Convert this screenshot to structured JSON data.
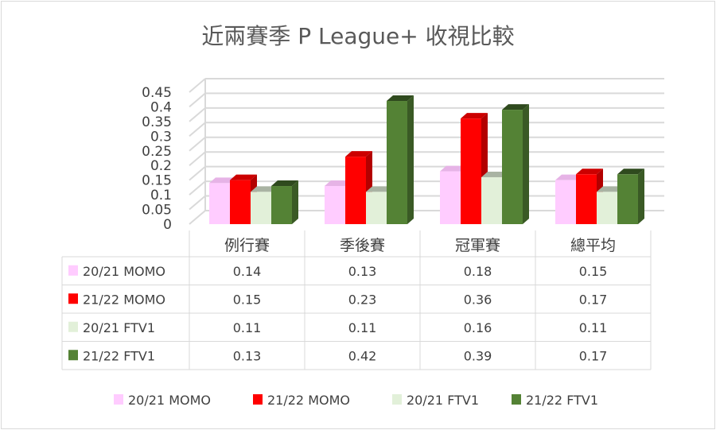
{
  "chart_data": {
    "type": "bar",
    "title": "近兩賽季 P League+ 收視比較",
    "categories": [
      "例行賽",
      "季後賽",
      "冠軍賽",
      "總平均"
    ],
    "series": [
      {
        "name": "20/21 MOMO",
        "values": [
          0.14,
          0.13,
          0.18,
          0.15
        ],
        "color": "#ffccff",
        "side": "#d9a6d9",
        "top": "#e6b3e6"
      },
      {
        "name": "21/22 MOMO",
        "values": [
          0.15,
          0.23,
          0.36,
          0.17
        ],
        "color": "#ff0000",
        "side": "#b30000",
        "top": "#cc0000"
      },
      {
        "name": "20/21 FTV1",
        "values": [
          0.11,
          0.11,
          0.16,
          0.11
        ],
        "color": "#e2f0d9",
        "side": "#b8c4b0",
        "top": "#a9b3a3"
      },
      {
        "name": "21/22 FTV1",
        "values": [
          0.13,
          0.42,
          0.39,
          0.17
        ],
        "color": "#548235",
        "side": "#3a5a25",
        "top": "#2f4a1e"
      }
    ],
    "yticks": [
      "0",
      "0.05",
      "0.1",
      "0.15",
      "0.2",
      "0.25",
      "0.3",
      "0.35",
      "0.4",
      "0.45"
    ],
    "ylim": [
      0,
      0.45
    ],
    "grid": true,
    "legend": "bottom",
    "data_table": true
  }
}
